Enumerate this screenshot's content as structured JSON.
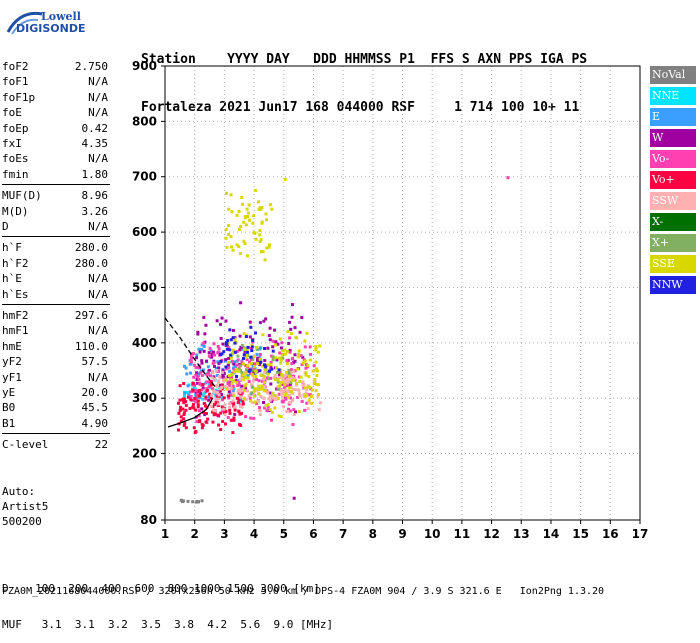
{
  "logo": {
    "brand_top": "Lowell",
    "brand_bottom": "DIGISONDE"
  },
  "header": {
    "line1": "Station    YYYY DAY   DDD HHMMSS P1  FFS S AXN PPS IGA PS",
    "line2": "Fortaleza 2021 Jun17 168 044000 RSF     1 714 100 10+ 11"
  },
  "params": [
    {
      "k": "foF2",
      "v": "2.750"
    },
    {
      "k": "foF1",
      "v": "N/A"
    },
    {
      "k": "foF1p",
      "v": "N/A"
    },
    {
      "k": "foE",
      "v": "N/A"
    },
    {
      "k": "foEp",
      "v": "0.42"
    },
    {
      "k": "fxI",
      "v": "4.35"
    },
    {
      "k": "foEs",
      "v": "N/A"
    },
    {
      "k": "fmin",
      "v": "1.80"
    },
    {
      "k": "MUF(D)",
      "v": "8.96"
    },
    {
      "k": "M(D)",
      "v": "3.26"
    },
    {
      "k": "D",
      "v": "N/A"
    },
    {
      "k": "h`F",
      "v": "280.0"
    },
    {
      "k": "h`F2",
      "v": "280.0"
    },
    {
      "k": "h`E",
      "v": "N/A"
    },
    {
      "k": "h`Es",
      "v": "N/A"
    },
    {
      "k": "hmF2",
      "v": "297.6"
    },
    {
      "k": "hmF1",
      "v": "N/A"
    },
    {
      "k": "hmE",
      "v": "110.0"
    },
    {
      "k": "yF2",
      "v": "57.5"
    },
    {
      "k": "yF1",
      "v": "N/A"
    },
    {
      "k": "yE",
      "v": "20.0"
    },
    {
      "k": "B0",
      "v": "45.5"
    },
    {
      "k": "B1",
      "v": "4.90"
    },
    {
      "k": "C-level",
      "v": "22"
    }
  ],
  "auto": {
    "label": "Auto:",
    "program": "Artist5",
    "version": "500200"
  },
  "legend": [
    {
      "label": "NoVal",
      "color": "#808080"
    },
    {
      "label": "NNE",
      "color": "#00e5ff"
    },
    {
      "label": "E",
      "color": "#3aa0ff"
    },
    {
      "label": "W",
      "color": "#a000a0"
    },
    {
      "label": "Vo-",
      "color": "#ff40b0"
    },
    {
      "label": "Vo+",
      "color": "#ff0040"
    },
    {
      "label": "SSW",
      "color": "#ffb0b0"
    },
    {
      "label": "X-",
      "color": "#007000"
    },
    {
      "label": "X+",
      "color": "#80b060"
    },
    {
      "label": "SSE",
      "color": "#d8d800"
    },
    {
      "label": "NNW",
      "color": "#2020e0"
    }
  ],
  "bottom": {
    "d_line": "D    100  200  400  600  800 1000 1500 3000 [km]",
    "muf_line": "MUF   3.1  3.1  3.2  3.5  3.8  4.2  5.6  9.0 [MHz]"
  },
  "footer": "FZA0M_2021168044000.RSF / 320fx256h 50 kHz 5.0 km / DPS-4 FZA0M 904 / 3.9 S 321.6 E   Ion2Png 1.3.20",
  "chart_data": {
    "type": "scatter",
    "title": "",
    "xlabel": "",
    "ylabel": "",
    "xlim": [
      1,
      17
    ],
    "ylim": [
      80,
      900
    ],
    "x_ticks": [
      1,
      2,
      3,
      4,
      5,
      6,
      7,
      8,
      9,
      10,
      11,
      12,
      13,
      14,
      15,
      16,
      17
    ],
    "y_ticks": [
      80,
      200,
      300,
      400,
      500,
      600,
      700,
      800,
      900
    ],
    "grid": "dotted",
    "clusters": [
      {
        "name": "NoVal",
        "color": "#808080",
        "x_range": [
          1.4,
          2.2
        ],
        "y_range": [
          112,
          120
        ],
        "n": 10
      },
      {
        "name": "NNE",
        "color": "#00e5ff",
        "x_range": [
          1.6,
          3.6
        ],
        "y_range": [
          285,
          340
        ],
        "n": 40
      },
      {
        "name": "E",
        "color": "#3aa0ff",
        "x_range": [
          1.6,
          4.2
        ],
        "y_range": [
          290,
          420
        ],
        "n": 80
      },
      {
        "name": "W",
        "color": "#a000a0",
        "x_range": [
          2.0,
          5.6
        ],
        "y_range": [
          260,
          480
        ],
        "n": 140
      },
      {
        "name": "Vo-",
        "color": "#ff40b0",
        "x_range": [
          1.8,
          6.0
        ],
        "y_range": [
          250,
          420
        ],
        "n": 220
      },
      {
        "name": "Vo+",
        "color": "#ff0040",
        "x_range": [
          1.4,
          3.6
        ],
        "y_range": [
          235,
          340
        ],
        "n": 120
      },
      {
        "name": "SSW",
        "color": "#ffb0b0",
        "x_range": [
          2.5,
          6.2
        ],
        "y_range": [
          270,
          360
        ],
        "n": 160
      },
      {
        "name": "X+",
        "color": "#80b060",
        "x_range": [
          3.4,
          5.2
        ],
        "y_range": [
          300,
          400
        ],
        "n": 30
      },
      {
        "name": "SSE",
        "color": "#d8d800",
        "x_range": [
          3.0,
          6.2
        ],
        "y_range": [
          260,
          430
        ],
        "n": 160
      },
      {
        "name": "SSE",
        "color": "#d8d800",
        "x_range": [
          3.0,
          4.6
        ],
        "y_range": [
          540,
          690
        ],
        "n": 60
      },
      {
        "name": "NNW",
        "color": "#2020e0",
        "x_range": [
          2.8,
          4.8
        ],
        "y_range": [
          330,
          440
        ],
        "n": 40
      }
    ],
    "isolated_points": [
      {
        "x": 12.5,
        "y": 701,
        "color": "#ff40b0"
      },
      {
        "x": 5.3,
        "y": 122,
        "color": "#a000a0"
      },
      {
        "x": 5.0,
        "y": 698,
        "color": "#d8d800"
      }
    ],
    "traces": [
      {
        "name": "virtual-height-curve",
        "style": "solid",
        "x": [
          1.1,
          1.5,
          2.0,
          2.4,
          2.6
        ],
        "y": [
          248,
          255,
          265,
          280,
          300
        ]
      },
      {
        "name": "model-upper-curve",
        "style": "dashed",
        "x": [
          1.0,
          1.5,
          2.0,
          2.4,
          2.7
        ],
        "y": [
          445,
          410,
          370,
          340,
          320
        ]
      }
    ]
  }
}
